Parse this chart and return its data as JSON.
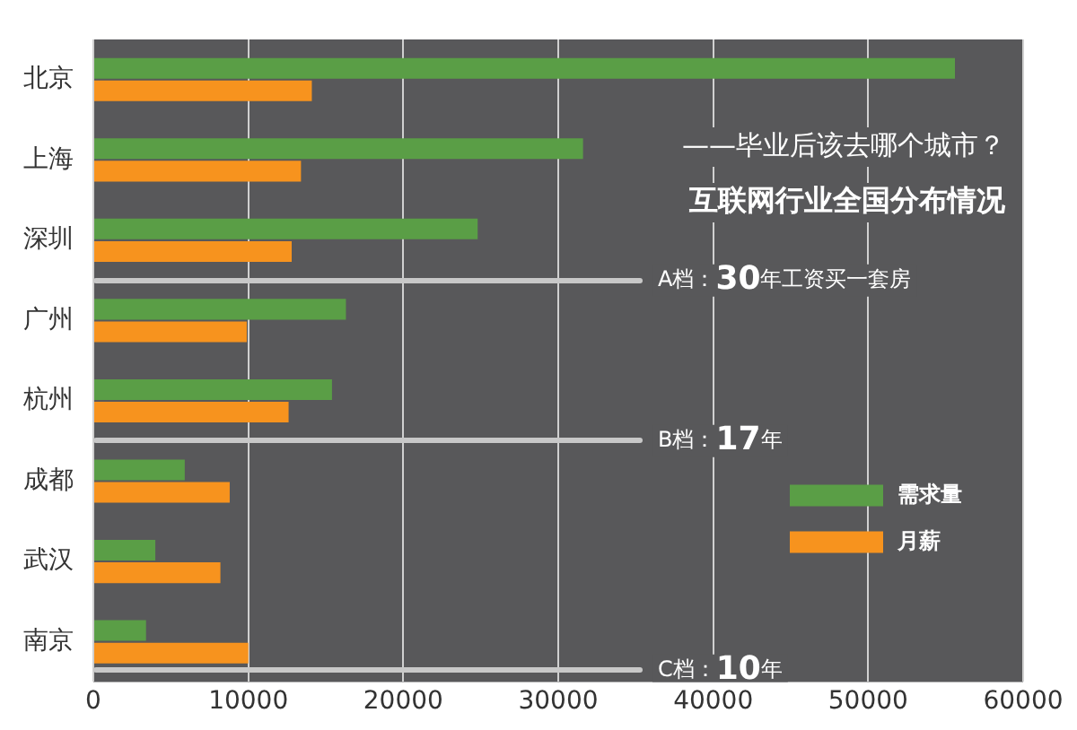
{
  "chart_data": {
    "type": "bar",
    "orientation": "horizontal",
    "title": "互联网行业全国分布情况",
    "subtitle": "——毕业后该去哪个城市？",
    "categories": [
      "北京",
      "上海",
      "深圳",
      "广州",
      "杭州",
      "成都",
      "武汉",
      "南京"
    ],
    "series": [
      {
        "name": "需求量",
        "color": "#5a9e46",
        "values": [
          55600,
          31600,
          24800,
          16300,
          15400,
          5900,
          4000,
          3400
        ]
      },
      {
        "name": "月薪",
        "color": "#f7931e",
        "values": [
          14100,
          13400,
          12800,
          9900,
          12600,
          8800,
          8200,
          10000
        ]
      }
    ],
    "xlim": [
      0,
      60000
    ],
    "xticks": [
      0,
      10000,
      20000,
      30000,
      40000,
      50000,
      60000
    ],
    "grid": true,
    "legend": "bottom right",
    "annotations": [
      "A档：30年工资买一套房",
      "B档：17年",
      "C档：10年"
    ]
  }
}
